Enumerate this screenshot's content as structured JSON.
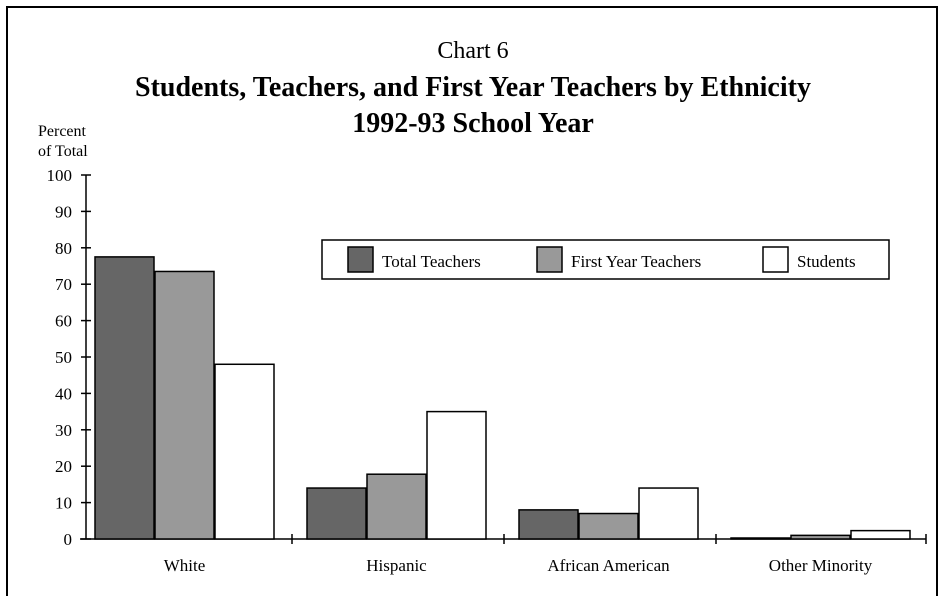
{
  "chart_data": {
    "type": "bar",
    "title_line1": "Chart 6",
    "title_line2": "Students, Teachers, and First Year Teachers by Ethnicity",
    "title_line3": "1992-93 School Year",
    "ylabel_line1": "Percent",
    "ylabel_line2": "of Total",
    "categories": [
      "White",
      "Hispanic",
      "African American",
      "Other Minority"
    ],
    "series": [
      {
        "name": "Total Teachers",
        "values": [
          77.5,
          14,
          8,
          0.2
        ],
        "color": "#666666"
      },
      {
        "name": "First Year Teachers",
        "values": [
          73.5,
          17.8,
          7,
          1
        ],
        "color": "#999999"
      },
      {
        "name": "Students",
        "values": [
          48,
          35,
          14,
          2.3
        ],
        "color": "#ffffff"
      }
    ],
    "yticks": [
      0,
      10,
      20,
      30,
      40,
      50,
      60,
      70,
      80,
      90,
      100
    ],
    "ylim": [
      0,
      100
    ],
    "legend_position": "upper-right",
    "grid": false
  }
}
